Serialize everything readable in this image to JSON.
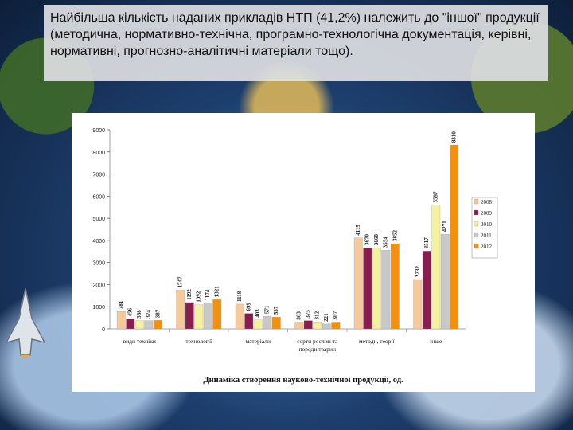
{
  "caption": "Найбільша кількість наданих прикладів НТП (41,2%) належить до \"іншої\" продукції (методична, нормативно-технічна, програмно-технологічна документація, керівні, нормативні, прогнозно-аналітичні матеріали тощо).",
  "colors": {
    "2008": "#f5c99a",
    "2009": "#8a1c4e",
    "2010": "#f4f2a0",
    "2011": "#c8c8c8",
    "2012": "#f5900e"
  },
  "chart_data": {
    "type": "bar",
    "title": "Динаміка створення науково-технічної продукції, од.",
    "categories": [
      "види техніки",
      "технології",
      "матеріали",
      "сорти рослин та породи тварин",
      "методи, теорії",
      "інше"
    ],
    "category_lines": [
      [
        "види техніки"
      ],
      [
        "технології"
      ],
      [
        "матеріали"
      ],
      [
        "сорти рослин та",
        "породи тварин"
      ],
      [
        "методи, теорії"
      ],
      [
        "інше"
      ]
    ],
    "series": [
      {
        "name": "2008",
        "values": [
          781,
          1747,
          1118,
          303,
          4115,
          2232
        ]
      },
      {
        "name": "2009",
        "values": [
          456,
          1192,
          699,
          375,
          3670,
          3517
        ]
      },
      {
        "name": "2010",
        "values": [
          368,
          1092,
          403,
          312,
          3668,
          5597
        ]
      },
      {
        "name": "2011",
        "values": [
          374,
          1174,
          571,
          221,
          3554,
          4271
        ]
      },
      {
        "name": "2012",
        "values": [
          387,
          1321,
          537,
          307,
          3852,
          8310
        ]
      }
    ],
    "yticks": [
      "0",
      "1000",
      "2000",
      "3000",
      "4000",
      "5000",
      "6000",
      "7000",
      "8000",
      "9000"
    ],
    "ylim": [
      0,
      9000
    ],
    "legend_position": "right"
  }
}
